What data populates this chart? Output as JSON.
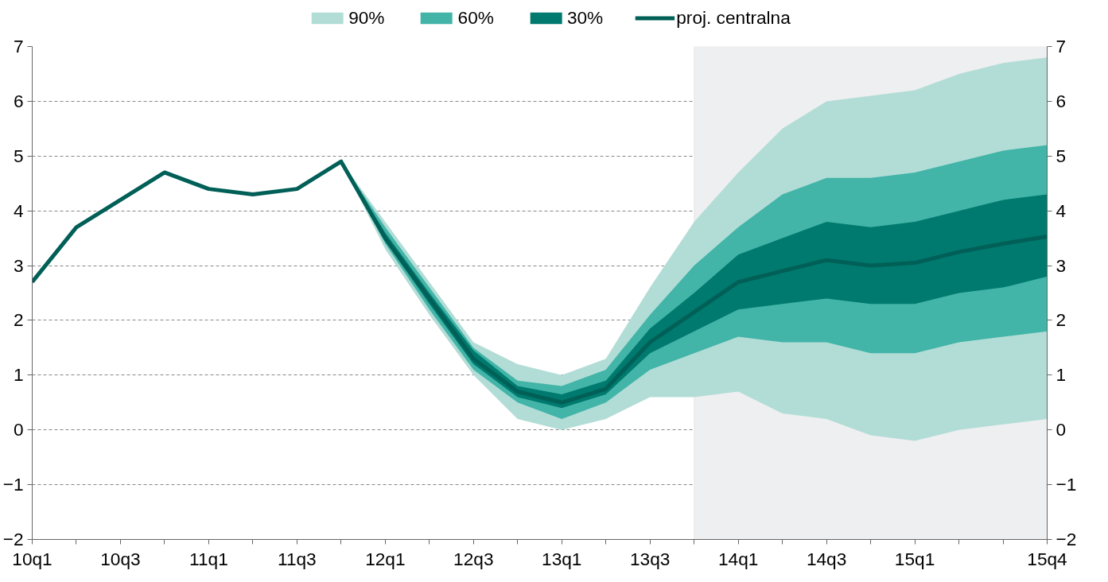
{
  "chart_data": {
    "type": "line",
    "categories": [
      "10q1",
      null,
      "10q3",
      null,
      "11q1",
      null,
      "11q3",
      null,
      "12q1",
      null,
      "12q3",
      null,
      "13q1",
      null,
      "13q3",
      null,
      "14q1",
      null,
      "14q3",
      null,
      "15q1",
      null,
      null,
      "15q4"
    ],
    "series": [
      {
        "name": "90%",
        "type": "area",
        "color": "#b2ddd6",
        "values": [
          null,
          null,
          null,
          null,
          null,
          null,
          null,
          null,
          null,
          null,
          null,
          null,
          null,
          null,
          null,
          null,
          null,
          null,
          null,
          null,
          null,
          null,
          null,
          null
        ],
        "lower": [
          null,
          null,
          null,
          null,
          null,
          null,
          null,
          4.9,
          3.3,
          2.1,
          1.0,
          0.2,
          0.0,
          0.2,
          0.6,
          0.6,
          0.7,
          0.3,
          0.2,
          -0.1,
          -0.2,
          0.0,
          0.1,
          0.2
        ],
        "upper": [
          null,
          null,
          null,
          null,
          null,
          null,
          null,
          4.9,
          3.8,
          2.7,
          1.6,
          1.2,
          1.0,
          1.3,
          2.6,
          3.8,
          4.7,
          5.5,
          6.0,
          6.1,
          6.2,
          6.5,
          6.7,
          6.8
        ]
      },
      {
        "name": "60%",
        "type": "area",
        "color": "#42b4a8",
        "values": [
          null,
          null,
          null,
          null,
          null,
          null,
          null,
          null,
          null,
          null,
          null,
          null,
          null,
          null,
          null,
          null,
          null,
          null,
          null,
          null,
          null,
          null,
          null,
          null
        ],
        "lower": [
          null,
          null,
          null,
          null,
          null,
          null,
          null,
          4.9,
          3.4,
          2.2,
          1.1,
          0.5,
          0.2,
          0.5,
          1.1,
          1.4,
          1.7,
          1.6,
          1.6,
          1.4,
          1.4,
          1.6,
          1.7,
          1.8
        ],
        "upper": [
          null,
          null,
          null,
          null,
          null,
          null,
          null,
          4.9,
          3.7,
          2.6,
          1.5,
          0.9,
          0.8,
          1.1,
          2.1,
          3.0,
          3.7,
          4.3,
          4.6,
          4.6,
          4.7,
          4.9,
          5.1,
          5.2
        ]
      },
      {
        "name": "30%",
        "type": "area",
        "color": "#007a6e",
        "values": [
          null,
          null,
          null,
          null,
          null,
          null,
          null,
          null,
          null,
          null,
          null,
          null,
          null,
          null,
          null,
          null,
          null,
          null,
          null,
          null,
          null,
          null,
          null,
          null
        ],
        "lower": [
          null,
          null,
          null,
          null,
          null,
          null,
          null,
          4.9,
          3.45,
          2.3,
          1.2,
          0.6,
          0.4,
          0.65,
          1.4,
          1.8,
          2.2,
          2.3,
          2.4,
          2.3,
          2.3,
          2.5,
          2.6,
          2.8
        ],
        "upper": [
          null,
          null,
          null,
          null,
          null,
          null,
          null,
          4.9,
          3.6,
          2.5,
          1.45,
          0.8,
          0.65,
          0.9,
          1.85,
          2.5,
          3.2,
          3.5,
          3.8,
          3.7,
          3.8,
          4.0,
          4.2,
          4.3
        ]
      },
      {
        "name": "proj. centralna",
        "color": "#005f57",
        "values": [
          2.7,
          3.7,
          4.2,
          4.7,
          4.4,
          4.3,
          4.4,
          4.9,
          3.5,
          2.4,
          1.3,
          0.7,
          0.5,
          0.75,
          1.6,
          2.15,
          2.7,
          2.9,
          3.1,
          3.0,
          3.05,
          3.25,
          3.4,
          3.53
        ]
      }
    ],
    "ylim": [
      -2,
      7
    ],
    "yticks": [
      -2,
      -1,
      0,
      1,
      2,
      3,
      4,
      5,
      6,
      7
    ],
    "y2lim": [
      -2,
      7
    ],
    "y2ticks": [
      -2,
      -1,
      0,
      1,
      2,
      3,
      4,
      5,
      6,
      7
    ],
    "grid": "y",
    "legend": "top",
    "marker": "none",
    "line_style": "solid"
  }
}
